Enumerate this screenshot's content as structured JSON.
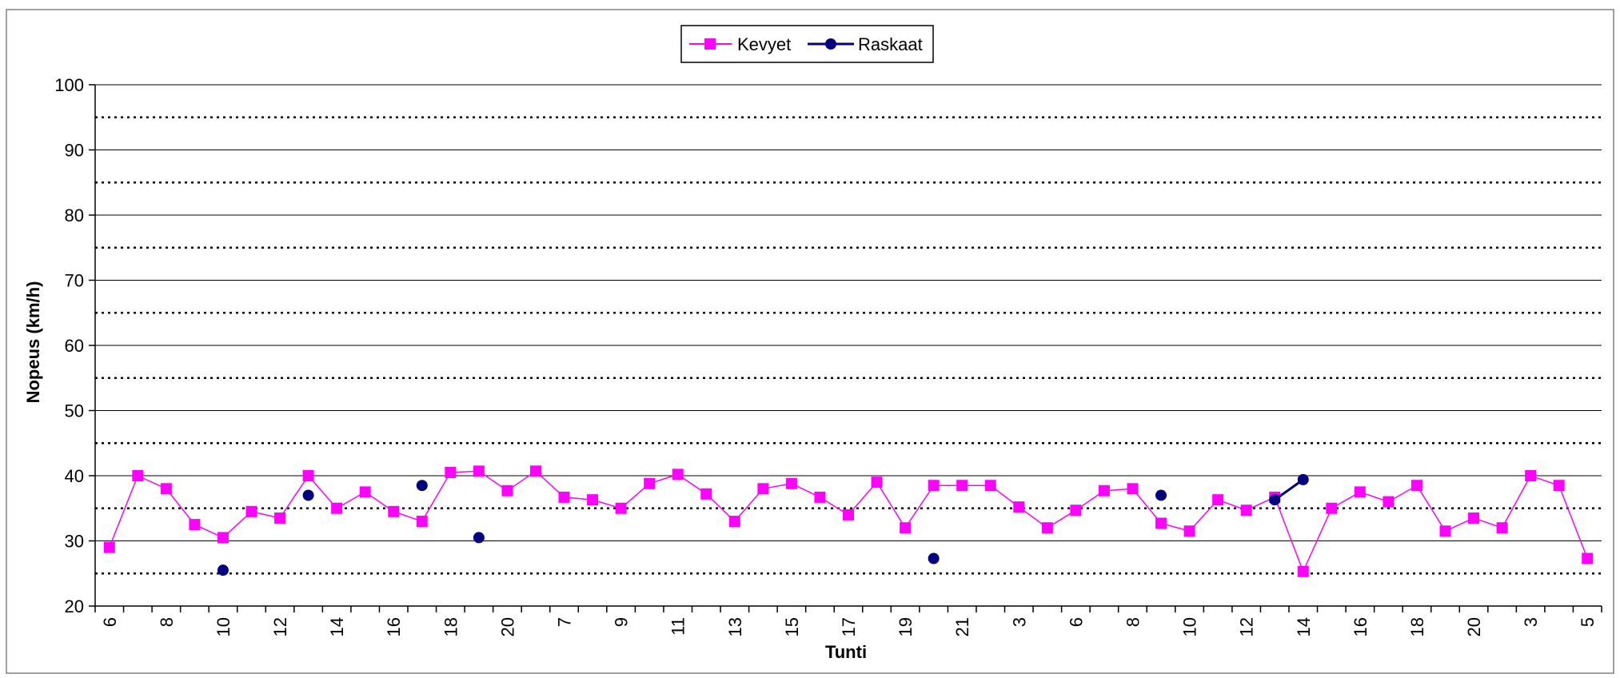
{
  "chart_data": {
    "type": "line",
    "xlabel": "Tunti",
    "ylabel": "Nopeus (km/h)",
    "ylim": [
      20,
      100
    ],
    "yticks": [
      20,
      30,
      40,
      50,
      60,
      70,
      80,
      90,
      100
    ],
    "grid": "solid major lines every 10, dotted minor lines at 25–95",
    "legend_position": "top-center",
    "x_tick_labels": [
      "6",
      "8",
      "10",
      "12",
      "14",
      "16",
      "18",
      "20",
      "7",
      "9",
      "11",
      "13",
      "15",
      "17",
      "19",
      "21",
      "3",
      "6",
      "8",
      "10",
      "12",
      "14",
      "16",
      "18",
      "20",
      "3",
      "5"
    ],
    "x_tick_label_slots": [
      0,
      2,
      4,
      6,
      8,
      10,
      12,
      14,
      16,
      18,
      20,
      22,
      24,
      26,
      28,
      30,
      32,
      34,
      36,
      38,
      40,
      42,
      44,
      46,
      48,
      50,
      52
    ],
    "slot_count": 53,
    "series": [
      {
        "name": "Kevyet",
        "color": "#ff00ff",
        "marker": "square",
        "values": [
          29,
          40,
          38,
          32.5,
          30.5,
          34.5,
          33.5,
          40,
          35,
          37.5,
          34.5,
          33,
          40.5,
          40.7,
          37.7,
          40.7,
          36.7,
          36.3,
          35,
          38.8,
          40.2,
          37.2,
          33,
          38,
          38.8,
          36.7,
          34,
          39,
          32,
          38.5,
          38.5,
          38.5,
          35.2,
          32,
          34.7,
          37.7,
          38,
          32.7,
          31.5,
          36.3,
          34.7,
          36.7,
          25.3,
          35,
          37.5,
          36,
          38.5,
          31.5,
          33.5,
          32,
          40,
          38.5,
          27.3
        ]
      },
      {
        "name": "Raskaat",
        "color": "#000080",
        "marker": "circle",
        "points": [
          [
            4,
            25.5
          ],
          [
            7,
            37
          ],
          [
            11,
            38.5
          ],
          [
            13,
            30.5
          ],
          [
            29,
            27.3
          ],
          [
            37,
            37
          ],
          [
            41,
            36.3
          ],
          [
            42,
            39.4
          ]
        ]
      }
    ]
  }
}
